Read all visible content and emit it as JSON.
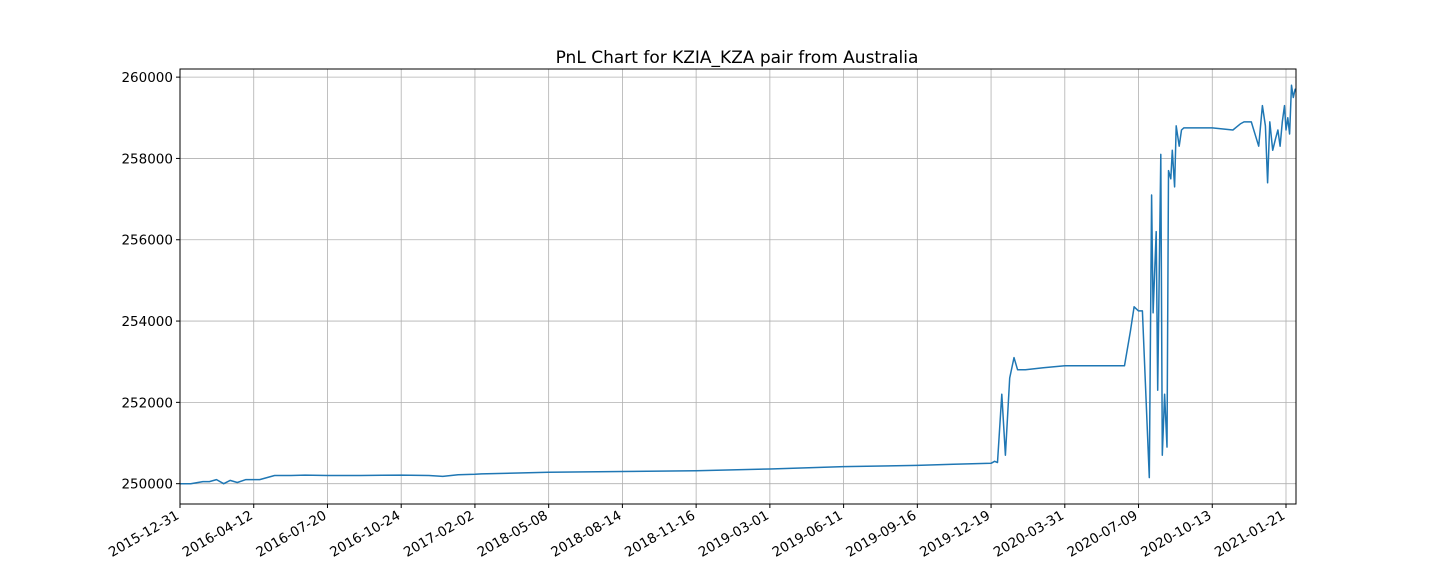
{
  "chart_data": {
    "type": "line",
    "title": "PnL Chart for KZIA_KZA pair from Australia",
    "xlabel": "",
    "ylabel": "",
    "grid": true,
    "legend": "none",
    "line_color": "#1f77b4",
    "x_range": [
      "2015-12-31",
      "2021-02-01"
    ],
    "ylim": [
      249500,
      260200
    ],
    "x_ticks": [
      "2015-12-31",
      "2016-04-12",
      "2016-07-20",
      "2016-10-24",
      "2017-02-02",
      "2018-05-08",
      "2018-08-14",
      "2018-11-16",
      "2019-03-01",
      "2019-06-11",
      "2019-09-16",
      "2019-12-19",
      "2020-03-31",
      "2020-07-09",
      "2020-10-13",
      "2021-01-21"
    ],
    "y_ticks": [
      250000,
      252000,
      254000,
      256000,
      258000,
      260000
    ],
    "x": [
      "2015-12-31",
      "2016-01-15",
      "2016-02-01",
      "2016-02-10",
      "2016-02-20",
      "2016-03-01",
      "2016-03-10",
      "2016-03-20",
      "2016-04-01",
      "2016-04-20",
      "2016-05-10",
      "2016-06-01",
      "2016-06-20",
      "2016-07-20",
      "2016-09-01",
      "2016-10-24",
      "2016-12-01",
      "2016-12-20",
      "2017-01-10",
      "2017-02-02",
      "2017-03-15",
      "2018-05-08",
      "2018-08-14",
      "2018-11-16",
      "2019-03-01",
      "2019-06-11",
      "2019-09-16",
      "2019-11-01",
      "2019-12-19",
      "2019-12-24",
      "2019-12-28",
      "2020-01-03",
      "2020-01-08",
      "2020-01-14",
      "2020-01-20",
      "2020-01-25",
      "2020-02-03",
      "2020-02-05",
      "2020-03-01",
      "2020-03-31",
      "2020-05-10",
      "2020-06-20",
      "2020-06-28",
      "2020-07-03",
      "2020-07-09",
      "2020-07-14",
      "2020-07-23",
      "2020-07-26",
      "2020-07-28",
      "2020-08-01",
      "2020-08-03",
      "2020-08-07",
      "2020-08-09",
      "2020-08-12",
      "2020-08-15",
      "2020-08-17",
      "2020-08-20",
      "2020-08-22",
      "2020-08-25",
      "2020-08-27",
      "2020-08-31",
      "2020-09-03",
      "2020-09-06",
      "2020-09-09",
      "2020-09-12",
      "2020-09-15",
      "2020-09-18",
      "2020-09-22",
      "2020-09-26",
      "2020-10-01",
      "2020-10-13",
      "2020-11-10",
      "2020-11-20",
      "2020-11-25",
      "2020-12-05",
      "2020-12-15",
      "2020-12-20",
      "2020-12-24",
      "2020-12-27",
      "2020-12-30",
      "2021-01-03",
      "2021-01-07",
      "2021-01-10",
      "2021-01-13",
      "2021-01-16",
      "2021-01-19",
      "2021-01-21",
      "2021-01-23",
      "2021-01-25",
      "2021-01-27",
      "2021-01-29",
      "2021-01-31",
      "2021-02-01"
    ],
    "y": [
      250000,
      250000,
      250050,
      250050,
      250100,
      250000,
      250080,
      250030,
      250100,
      250100,
      250200,
      250200,
      250210,
      250200,
      250200,
      250210,
      250200,
      250180,
      250220,
      250230,
      250240,
      250280,
      250300,
      250320,
      250360,
      250420,
      250450,
      250480,
      250500,
      250550,
      250520,
      252200,
      250700,
      252600,
      253100,
      252800,
      252800,
      252800,
      252850,
      252900,
      252900,
      252900,
      253750,
      254350,
      254250,
      254250,
      250150,
      257100,
      254200,
      256200,
      252300,
      258100,
      250700,
      252200,
      250900,
      257700,
      257500,
      258200,
      257300,
      258800,
      258300,
      258700,
      258750,
      258750,
      258750,
      258750,
      258750,
      258750,
      258750,
      258750,
      258750,
      258700,
      258850,
      258900,
      258900,
      258300,
      259300,
      258800,
      257400,
      258900,
      258200,
      258500,
      258700,
      258300,
      258900,
      259300,
      258700,
      259000,
      258600,
      259800,
      259500,
      259700,
      259700
    ]
  }
}
